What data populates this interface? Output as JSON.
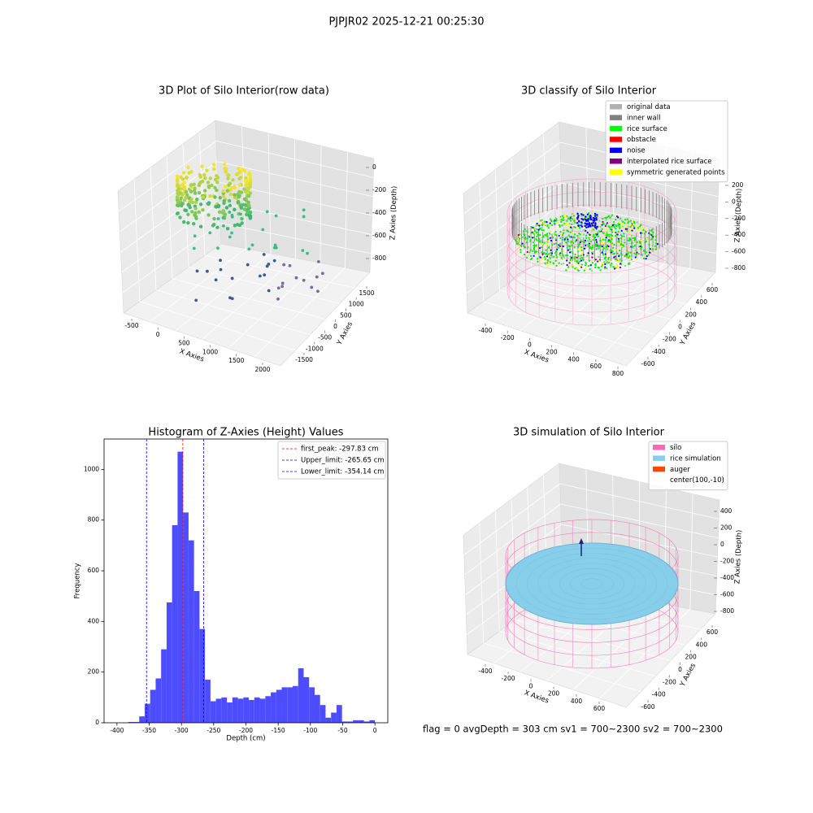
{
  "suptitle": "PJPJR02 2025-12-21 00:25:30",
  "footer": "flag = 0     avgDepth = 303 cm  sv1 = 700~2300  sv2 = 700~2300",
  "chart_data": [
    {
      "type": "scatter3d",
      "title": "3D Plot of Silo Interior(row data)",
      "x_label": "X Axies",
      "y_label": "Y Axies",
      "z_label": "Z Axies (Depth)",
      "xticks": [
        -500,
        0,
        500,
        1000,
        1500,
        2000
      ],
      "yticks": [
        -1500,
        -1000,
        -500,
        0,
        500,
        1000,
        1500
      ],
      "zticks": [
        -800,
        -600,
        -400,
        -200,
        0
      ]
    },
    {
      "type": "scatter3d",
      "title": "3D classify of Silo Interior",
      "x_label": "X Axies",
      "y_label": "Y Axies",
      "z_label": "Z Axies (Depth)",
      "xticks": [
        -400,
        -200,
        0,
        200,
        400,
        600,
        800
      ],
      "yticks": [
        -600,
        -400,
        -200,
        0,
        200,
        400,
        600
      ],
      "zticks": [
        -800,
        -600,
        -400,
        -200,
        0,
        200
      ],
      "legend": [
        {
          "name": "original data",
          "color": "#b0b0b0"
        },
        {
          "name": "inner wall",
          "color": "#808080"
        },
        {
          "name": "rice surface",
          "color": "#00ff00"
        },
        {
          "name": "obstacle",
          "color": "#ff0000"
        },
        {
          "name": "noise",
          "color": "#0000ff"
        },
        {
          "name": "interpolated rice surface",
          "color": "#800080"
        },
        {
          "name": "symmetric generated points",
          "color": "#ffff00"
        }
      ]
    },
    {
      "type": "histogram",
      "title": "Histogram of Z-Axies (Height) Values",
      "x_label": "Depth (cm)",
      "y_label": "Frequency",
      "color": "#4d4dff",
      "bins": [
        -382.5,
        -374,
        -365.5,
        -357,
        -348.5,
        -340,
        -331.5,
        -323,
        -314.5,
        -306,
        -297.5,
        -289,
        -280.5,
        -272,
        -263.5,
        -255,
        -246.5,
        -238,
        -229.5,
        -221,
        -212.5,
        -204,
        -195.5,
        -187,
        -178.5,
        -170,
        -161.5,
        -153,
        -144.5,
        -136,
        -127.5,
        -119,
        -110.5,
        -102,
        -93.5,
        -85,
        -76.5,
        -68,
        -59.5,
        -51,
        -42.5,
        -34,
        -25.5,
        -17,
        -8.5,
        0
      ],
      "counts": [
        3,
        3,
        25,
        75,
        130,
        175,
        290,
        475,
        780,
        1070,
        830,
        720,
        520,
        370,
        170,
        85,
        95,
        100,
        80,
        100,
        95,
        100,
        90,
        100,
        95,
        105,
        120,
        130,
        140,
        140,
        145,
        215,
        180,
        140,
        110,
        70,
        20,
        40,
        70,
        5,
        5,
        10,
        10,
        5,
        10
      ],
      "xlim": [
        -420,
        20
      ],
      "ylim": [
        0,
        1120
      ],
      "xticks": [
        -400,
        -350,
        -300,
        -250,
        -200,
        -150,
        -100,
        -50,
        0
      ],
      "yticks": [
        0,
        200,
        400,
        600,
        800,
        1000
      ],
      "lines": [
        {
          "name": "first_peak: -297.83 cm",
          "value": -297.83,
          "color": "#ff0000"
        },
        {
          "name": "Upper_limit: -265.65 cm",
          "value": -265.65,
          "color": "#0000ff"
        },
        {
          "name": "Lower_limit: -354.14 cm",
          "value": -354.14,
          "color": "#0000ff"
        }
      ],
      "legend_loc": "upper right"
    },
    {
      "type": "surface3d",
      "title": "3D simulation of Silo Interior",
      "x_label": "X Axies",
      "y_label": "Y Axies",
      "z_label": "Z Axies (Depth)",
      "xticks": [
        -400,
        -200,
        0,
        200,
        400,
        600
      ],
      "yticks": [
        -600,
        -400,
        -200,
        0,
        200,
        400,
        600
      ],
      "zticks": [
        -800,
        -600,
        -400,
        -200,
        0,
        200,
        400
      ],
      "legend": [
        {
          "name": "silo",
          "color": "#ff69b4"
        },
        {
          "name": "rice simulation",
          "color": "#87ceeb"
        },
        {
          "name": "auger",
          "color": "#ff4500"
        },
        {
          "name": "center(100,-10)"
        }
      ]
    }
  ]
}
